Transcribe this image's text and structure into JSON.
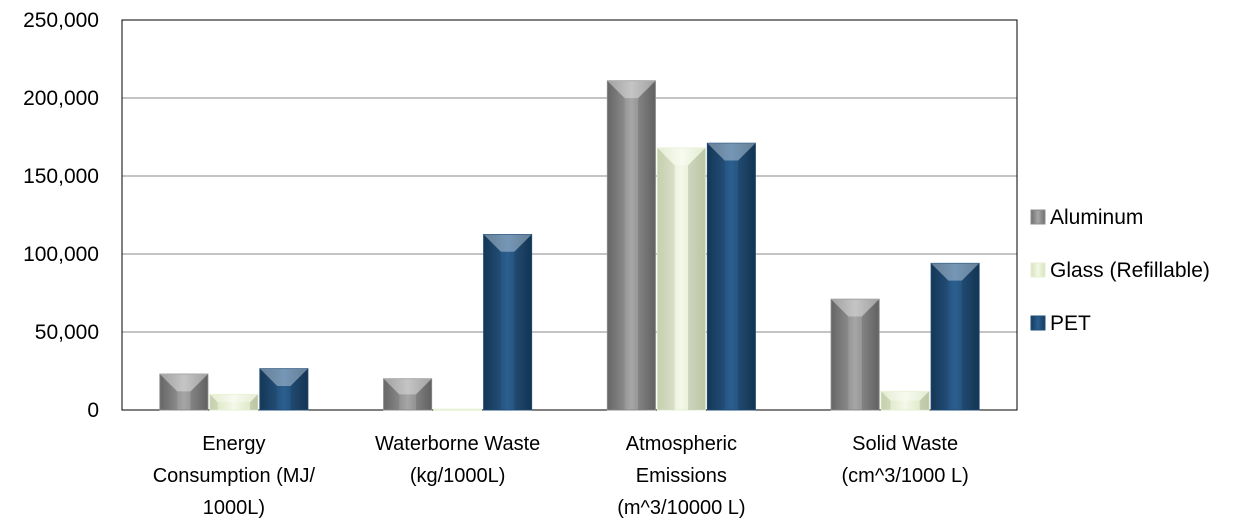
{
  "chart_data": {
    "type": "bar",
    "title": "",
    "xlabel": "",
    "ylabel": "",
    "ylim": [
      0,
      250000
    ],
    "yticks": [
      "0",
      "50,000",
      "100,000",
      "150,000",
      "200,000",
      "250,000"
    ],
    "grid": true,
    "legend_position": "right",
    "categories": [
      [
        "Energy",
        "Consumption (MJ/",
        "1000L)"
      ],
      [
        "Waterborne Waste",
        "(kg/1000L)"
      ],
      [
        "Atmospheric",
        "Emissions",
        "(m^3/10000 L)"
      ],
      [
        "Solid Waste",
        "(cm^3/1000 L)"
      ]
    ],
    "series": [
      {
        "name": "Aluminum",
        "color": "#8c8c8c",
        "values": [
          23000,
          20000,
          211000,
          71000
        ]
      },
      {
        "name": "Glass (Refillable)",
        "color": "#e6efd2",
        "values": [
          10000,
          500,
          168000,
          12000
        ]
      },
      {
        "name": "PET",
        "color": "#1f4e79",
        "values": [
          26500,
          112500,
          171000,
          94000
        ]
      }
    ]
  }
}
